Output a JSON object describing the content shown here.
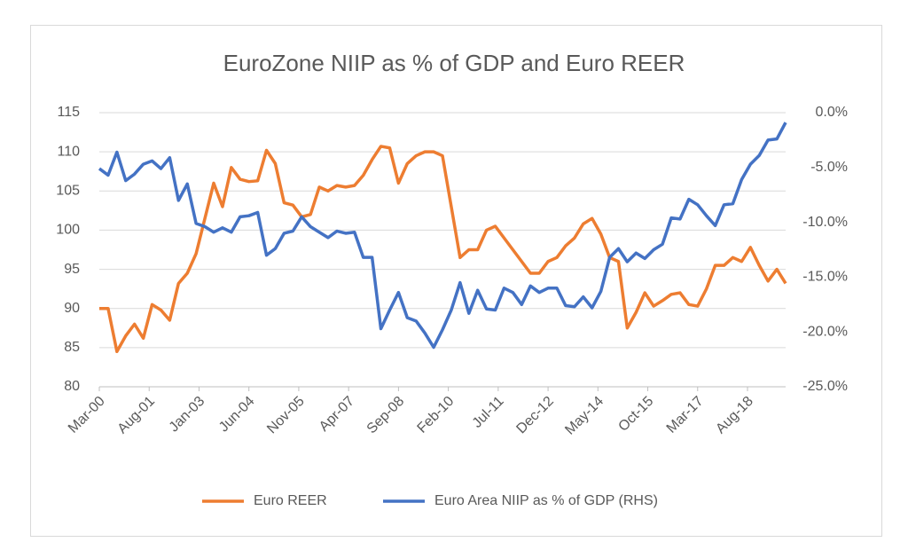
{
  "chart_data": {
    "type": "line",
    "title": "EuroZone NIIP as % of GDP and Euro REER",
    "x": [
      "Mar-00",
      "Jun-00",
      "Sep-00",
      "Dec-00",
      "Mar-01",
      "Jun-01",
      "Sep-01",
      "Dec-01",
      "Mar-02",
      "Jun-02",
      "Sep-02",
      "Dec-02",
      "Mar-03",
      "Jun-03",
      "Sep-03",
      "Dec-03",
      "Mar-04",
      "Jun-04",
      "Sep-04",
      "Dec-04",
      "Mar-05",
      "Jun-05",
      "Sep-05",
      "Dec-05",
      "Mar-06",
      "Jun-06",
      "Sep-06",
      "Dec-06",
      "Mar-07",
      "Jun-07",
      "Sep-07",
      "Dec-07",
      "Mar-08",
      "Jun-08",
      "Sep-08",
      "Dec-08",
      "Mar-09",
      "Jun-09",
      "Sep-09",
      "Dec-09",
      "Mar-10",
      "Jun-10",
      "Sep-10",
      "Dec-10",
      "Mar-11",
      "Jun-11",
      "Sep-11",
      "Dec-11",
      "Mar-12",
      "Jun-12",
      "Sep-12",
      "Dec-12",
      "Mar-13",
      "Jun-13",
      "Sep-13",
      "Dec-13",
      "Mar-14",
      "Jun-14",
      "Sep-14",
      "Dec-14",
      "Mar-15",
      "Jun-15",
      "Sep-15",
      "Dec-15",
      "Mar-16",
      "Jun-16",
      "Sep-16",
      "Dec-16",
      "Mar-17",
      "Jun-17",
      "Sep-17",
      "Dec-17",
      "Mar-18",
      "Jun-18",
      "Sep-18",
      "Dec-18",
      "Mar-19",
      "Jun-19",
      "Sep-19"
    ],
    "xlim": [
      "Mar-00",
      "Sep-19"
    ],
    "xticks": [
      "Mar-00",
      "Aug-01",
      "Jan-03",
      "Jun-04",
      "Nov-05",
      "Apr-07",
      "Sep-08",
      "Feb-10",
      "Jul-11",
      "Dec-12",
      "May-14",
      "Oct-15",
      "Mar-17",
      "Aug-18"
    ],
    "ylim": [
      80,
      115
    ],
    "yticks": [
      80,
      85,
      90,
      95,
      100,
      105,
      110,
      115
    ],
    "y2lim": [
      -25,
      0
    ],
    "y2ticks": [
      {
        "value": -25,
        "label": "-25.0%"
      },
      {
        "value": -20,
        "label": "-20.0%"
      },
      {
        "value": -15,
        "label": "-15.0%"
      },
      {
        "value": -10,
        "label": "-10.0%"
      },
      {
        "value": -5,
        "label": "-5.0%"
      },
      {
        "value": 0,
        "label": "0.0%"
      }
    ],
    "grid": true,
    "legend": "bottom",
    "series": [
      {
        "name": "Euro REER",
        "color": "#ed7d31",
        "values": [
          90,
          90,
          84.5,
          86.5,
          88,
          86.2,
          90.5,
          89.8,
          88.5,
          93.2,
          94.5,
          97,
          101.5,
          106,
          103,
          108,
          106.5,
          106.2,
          106.3,
          110.2,
          108.5,
          103.5,
          103.2,
          101.7,
          102,
          105.5,
          105,
          105.7,
          105.5,
          105.7,
          107,
          109,
          110.7,
          110.5,
          106,
          108.5,
          109.5,
          110,
          110,
          109.5,
          103,
          96.5,
          97.5,
          97.5,
          100,
          100.5,
          99,
          97.5,
          96,
          94.5,
          94.5,
          96,
          96.5,
          98,
          99,
          100.8,
          101.5,
          99.5,
          96.5,
          96,
          87.5,
          89.5,
          92,
          90.3,
          91,
          91.8,
          92,
          90.5,
          90.3,
          92.5,
          95.5,
          95.5,
          96.5,
          96,
          97.8,
          95.5,
          93.5,
          95,
          93.2
        ]
      },
      {
        "name": "Euro Area NIIP as % of GDP (RHS)",
        "color": "#4472c4",
        "axis": "y2",
        "values": [
          -5.1,
          -5.7,
          -3.6,
          -6.2,
          -5.6,
          -4.7,
          -4.4,
          -5.1,
          -4.1,
          -8.0,
          -6.5,
          -10.1,
          -10.4,
          -10.9,
          -10.5,
          -10.9,
          -9.5,
          -9.4,
          -9.1,
          -13.0,
          -12.4,
          -11.0,
          -10.8,
          -9.5,
          -10.4,
          -10.9,
          -11.4,
          -10.8,
          -11.0,
          -10.9,
          -13.2,
          -13.2,
          -19.7,
          -18.0,
          -16.4,
          -18.7,
          -19.0,
          -20.1,
          -21.4,
          -19.8,
          -18.0,
          -15.5,
          -18.3,
          -16.2,
          -17.9,
          -18.0,
          -16.0,
          -16.4,
          -17.5,
          -15.8,
          -16.4,
          -16.0,
          -16.0,
          -17.6,
          -17.7,
          -16.8,
          -17.8,
          -16.3,
          -13.2,
          -12.4,
          -13.6,
          -12.8,
          -13.3,
          -12.5,
          -12.0,
          -9.6,
          -9.7,
          -7.9,
          -8.4,
          -9.4,
          -10.3,
          -8.4,
          -8.3,
          -6.1,
          -4.7,
          -3.9,
          -2.5,
          -2.4,
          -0.9
        ]
      }
    ]
  }
}
